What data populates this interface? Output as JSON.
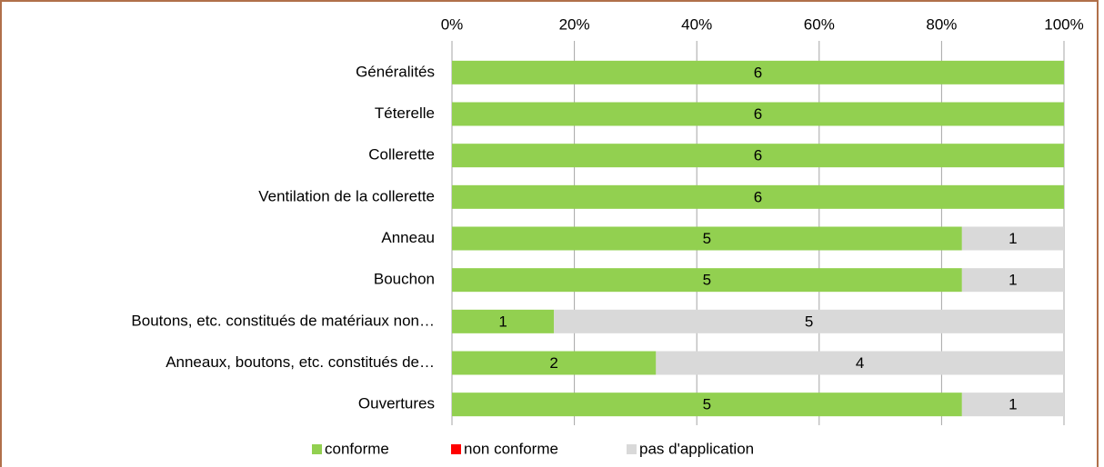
{
  "chart_data": {
    "type": "bar",
    "orientation": "horizontal",
    "stack": "percent",
    "categories": [
      "Généralités",
      "Téterelle",
      "Collerette",
      "Ventilation de la collerette",
      "Anneau",
      "Bouchon",
      "Boutons, etc. constitués de matériaux non…",
      "Anneaux, boutons, etc. constitués de…",
      "Ouvertures"
    ],
    "series": [
      {
        "name": "conforme",
        "color": "#92d050",
        "values": [
          6,
          6,
          6,
          6,
          5,
          5,
          1,
          2,
          5
        ]
      },
      {
        "name": "non conforme",
        "color": "#ff0000",
        "values": [
          0,
          0,
          0,
          0,
          0,
          0,
          0,
          0,
          0
        ]
      },
      {
        "name": "pas d'application",
        "color": "#d9d9d9",
        "values": [
          0,
          0,
          0,
          0,
          1,
          1,
          5,
          4,
          1
        ]
      }
    ],
    "xlim": [
      0,
      100
    ],
    "xticks": [
      {
        "value": 0,
        "label": "0%"
      },
      {
        "value": 20,
        "label": "20%"
      },
      {
        "value": 40,
        "label": "40%"
      },
      {
        "value": 60,
        "label": "60%"
      },
      {
        "value": 80,
        "label": "80%"
      },
      {
        "value": 100,
        "label": "100%"
      }
    ],
    "grid": true,
    "legend": "bottom"
  }
}
